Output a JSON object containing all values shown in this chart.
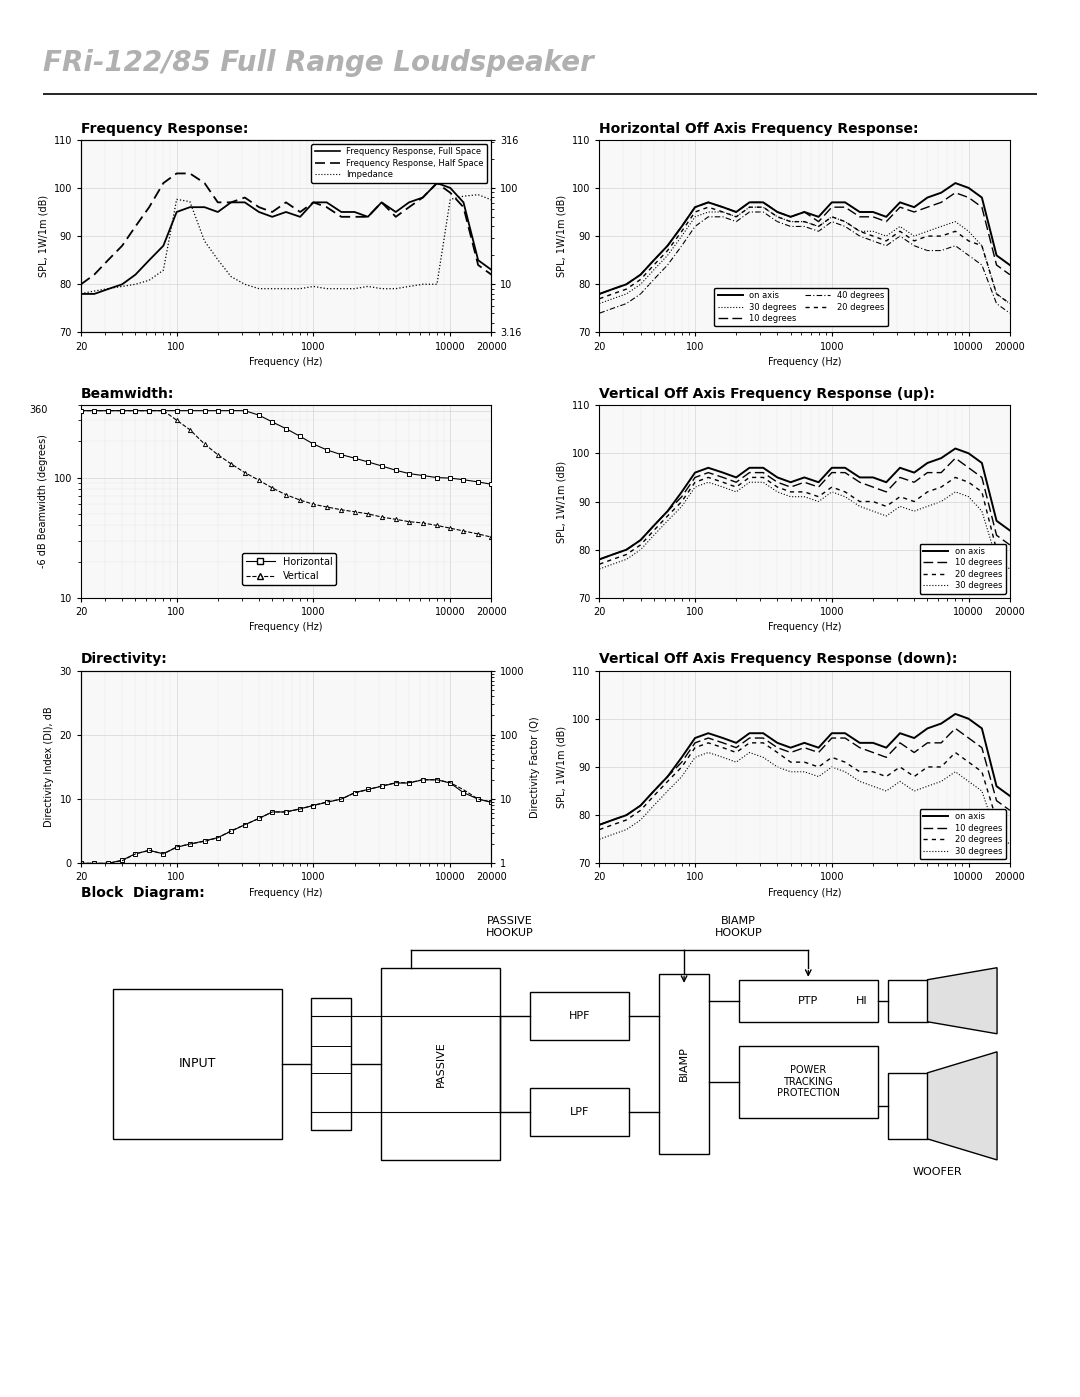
{
  "title": "FRi-122/85 Full Range Loudspeaker",
  "title_color": "#b0b0b0",
  "background_color": "#ffffff",
  "freq_response_title": "Frequency Response:",
  "horiz_off_axis_title": "Horizontal Off Axis Frequency Response:",
  "beamwidth_title": "Beamwidth:",
  "vert_up_title": "Vertical Off Axis Frequency Response (up):",
  "directivity_title": "Directivity:",
  "vert_down_title": "Vertical Off Axis Frequency Response (down):",
  "block_diagram_title": "Block  Diagram:",
  "freq_x": [
    20,
    25,
    31.5,
    40,
    50,
    63,
    80,
    100,
    125,
    160,
    200,
    250,
    315,
    400,
    500,
    630,
    800,
    1000,
    1250,
    1600,
    2000,
    2500,
    3150,
    4000,
    5000,
    6300,
    8000,
    10000,
    12500,
    16000,
    20000
  ],
  "freq_full_space": [
    78,
    78,
    79,
    80,
    82,
    85,
    88,
    95,
    96,
    96,
    95,
    97,
    97,
    95,
    94,
    95,
    94,
    97,
    97,
    95,
    95,
    94,
    97,
    95,
    97,
    98,
    101,
    100,
    97,
    85,
    83
  ],
  "freq_half_space": [
    80,
    82,
    85,
    88,
    92,
    96,
    101,
    103,
    103,
    101,
    97,
    97,
    98,
    96,
    95,
    97,
    95,
    97,
    96,
    94,
    94,
    94,
    97,
    94,
    96,
    98,
    101,
    99,
    96,
    84,
    82
  ],
  "impedance": [
    8,
    8.5,
    9,
    9.5,
    10,
    11,
    14,
    76,
    72,
    28,
    18,
    12,
    10,
    9,
    9,
    9,
    9,
    9.5,
    9,
    9,
    9,
    9.5,
    9,
    9,
    9.5,
    10,
    10,
    76,
    82,
    85,
    75
  ],
  "horiz_on_axis": [
    78,
    79,
    80,
    82,
    85,
    88,
    92,
    96,
    97,
    96,
    95,
    97,
    97,
    95,
    94,
    95,
    94,
    97,
    97,
    95,
    95,
    94,
    97,
    96,
    98,
    99,
    101,
    100,
    98,
    86,
    84
  ],
  "horiz_10deg": [
    78,
    79,
    80,
    82,
    85,
    88,
    92,
    96,
    97,
    96,
    95,
    97,
    97,
    95,
    94,
    95,
    93,
    96,
    96,
    94,
    94,
    93,
    96,
    95,
    96,
    97,
    99,
    98,
    96,
    84,
    82
  ],
  "horiz_20deg": [
    77,
    78,
    79,
    81,
    84,
    87,
    91,
    95,
    96,
    95,
    94,
    96,
    96,
    94,
    93,
    93,
    92,
    94,
    93,
    91,
    90,
    89,
    91,
    89,
    90,
    90,
    91,
    89,
    88,
    78,
    76
  ],
  "horiz_30deg": [
    76,
    77,
    78,
    80,
    83,
    86,
    90,
    94,
    95,
    95,
    94,
    96,
    96,
    94,
    93,
    93,
    92,
    94,
    93,
    91,
    91,
    90,
    92,
    90,
    91,
    92,
    93,
    91,
    88,
    78,
    76
  ],
  "horiz_40deg": [
    74,
    75,
    76,
    78,
    81,
    84,
    88,
    92,
    94,
    94,
    93,
    95,
    95,
    93,
    92,
    92,
    91,
    93,
    92,
    90,
    89,
    88,
    90,
    88,
    87,
    87,
    88,
    86,
    84,
    76,
    74
  ],
  "beamwidth_x": [
    20,
    25,
    31.5,
    40,
    50,
    63,
    80,
    100,
    125,
    160,
    200,
    250,
    315,
    400,
    500,
    630,
    800,
    1000,
    1250,
    1600,
    2000,
    2500,
    3150,
    4000,
    5000,
    6300,
    8000,
    10000,
    12500,
    16000,
    20000
  ],
  "beamwidth_horiz": [
    360,
    360,
    360,
    360,
    360,
    360,
    360,
    360,
    360,
    360,
    360,
    360,
    360,
    330,
    290,
    255,
    220,
    190,
    170,
    155,
    145,
    135,
    125,
    115,
    108,
    104,
    100,
    99,
    96,
    92,
    88
  ],
  "beamwidth_vert": [
    360,
    360,
    360,
    360,
    360,
    360,
    360,
    300,
    250,
    190,
    155,
    130,
    110,
    95,
    82,
    72,
    65,
    60,
    57,
    54,
    52,
    50,
    47,
    45,
    43,
    42,
    40,
    38,
    36,
    34,
    32
  ],
  "directivity_x": [
    20,
    25,
    31.5,
    40,
    50,
    63,
    80,
    100,
    125,
    160,
    200,
    250,
    315,
    400,
    500,
    630,
    800,
    1000,
    1250,
    1600,
    2000,
    2500,
    3150,
    4000,
    5000,
    6300,
    8000,
    10000,
    12500,
    16000,
    20000
  ],
  "directivity_index": [
    0,
    0,
    0,
    0.5,
    1.5,
    2,
    1.5,
    2.5,
    3,
    3.5,
    4,
    5,
    6,
    7,
    8,
    8,
    8.5,
    9,
    9.5,
    10,
    11,
    11.5,
    12,
    12.5,
    12.5,
    13,
    13,
    12.5,
    11,
    10,
    9.5
  ],
  "directivity_factor": [
    1,
    1,
    1,
    1.1,
    1.4,
    1.6,
    1.4,
    1.8,
    2,
    2.2,
    2.5,
    3.2,
    4,
    5,
    6.3,
    6.3,
    7,
    8,
    9,
    10,
    12.5,
    14,
    16,
    18,
    18,
    20,
    20,
    18,
    14,
    10,
    9
  ],
  "vert_up_on_axis": [
    78,
    79,
    80,
    82,
    85,
    88,
    92,
    96,
    97,
    96,
    95,
    97,
    97,
    95,
    94,
    95,
    94,
    97,
    97,
    95,
    95,
    94,
    97,
    96,
    98,
    99,
    101,
    100,
    98,
    86,
    84
  ],
  "vert_up_10deg": [
    78,
    79,
    80,
    82,
    85,
    88,
    91,
    95,
    96,
    95,
    94,
    96,
    96,
    94,
    93,
    94,
    93,
    96,
    96,
    94,
    93,
    92,
    95,
    94,
    96,
    96,
    99,
    97,
    95,
    83,
    81
  ],
  "vert_up_20deg": [
    77,
    78,
    79,
    81,
    84,
    87,
    90,
    94,
    95,
    94,
    93,
    95,
    95,
    93,
    92,
    92,
    91,
    93,
    92,
    90,
    90,
    89,
    91,
    90,
    92,
    93,
    95,
    94,
    92,
    80,
    78
  ],
  "vert_up_30deg": [
    76,
    77,
    78,
    80,
    83,
    86,
    89,
    93,
    94,
    93,
    92,
    94,
    94,
    92,
    91,
    91,
    90,
    92,
    91,
    89,
    88,
    87,
    89,
    88,
    89,
    90,
    92,
    91,
    88,
    78,
    76
  ],
  "vert_down_on_axis": [
    78,
    79,
    80,
    82,
    85,
    88,
    92,
    96,
    97,
    96,
    95,
    97,
    97,
    95,
    94,
    95,
    94,
    97,
    97,
    95,
    95,
    94,
    97,
    96,
    98,
    99,
    101,
    100,
    98,
    86,
    84
  ],
  "vert_down_10deg": [
    78,
    79,
    80,
    82,
    85,
    88,
    91,
    95,
    96,
    95,
    94,
    96,
    96,
    94,
    93,
    94,
    93,
    96,
    96,
    94,
    93,
    92,
    95,
    93,
    95,
    95,
    98,
    96,
    94,
    83,
    81
  ],
  "vert_down_20deg": [
    77,
    78,
    79,
    81,
    84,
    87,
    90,
    94,
    95,
    94,
    93,
    95,
    95,
    93,
    91,
    91,
    90,
    92,
    91,
    89,
    89,
    88,
    90,
    88,
    90,
    90,
    93,
    91,
    89,
    79,
    77
  ],
  "vert_down_30deg": [
    75,
    76,
    77,
    79,
    82,
    85,
    88,
    92,
    93,
    92,
    91,
    93,
    92,
    90,
    89,
    89,
    88,
    90,
    89,
    87,
    86,
    85,
    87,
    85,
    86,
    87,
    89,
    87,
    85,
    76,
    74
  ]
}
